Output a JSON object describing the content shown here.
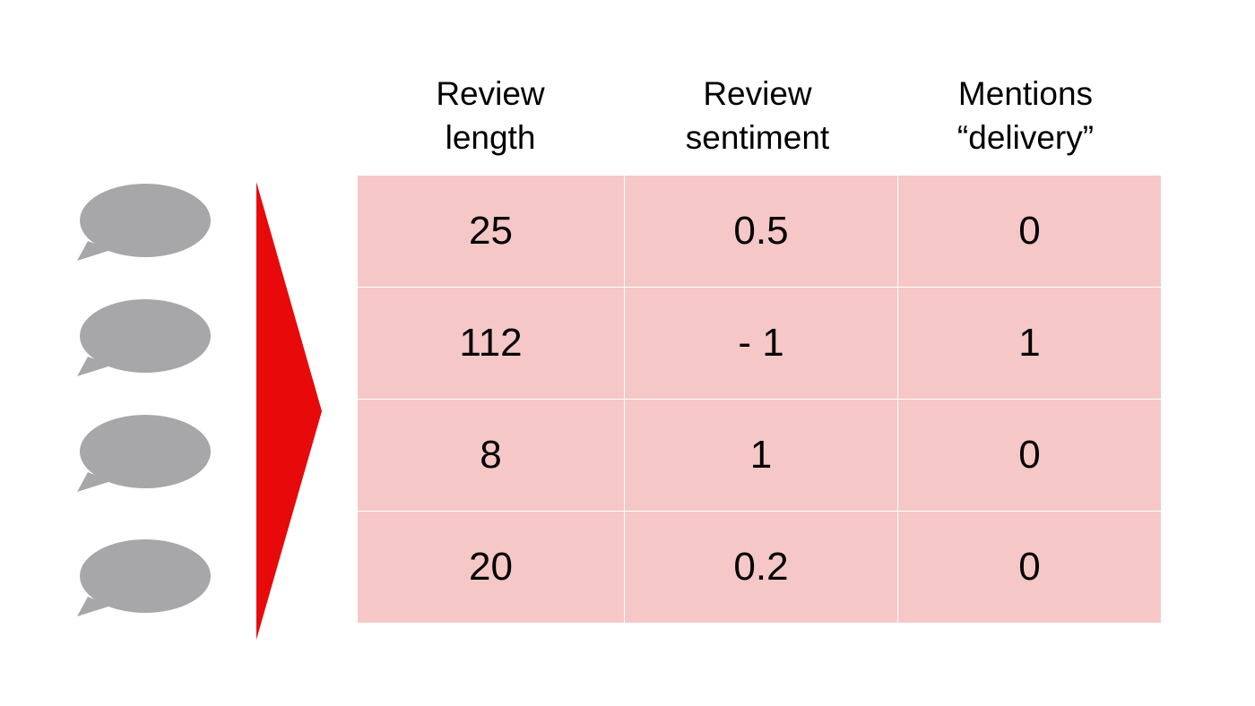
{
  "headers": [
    {
      "line1": "Review",
      "line2": "length"
    },
    {
      "line1": "Review",
      "line2": "sentiment"
    },
    {
      "line1": "Mentions",
      "line2": "“delivery”"
    }
  ],
  "rows": [
    [
      "25",
      "0.5",
      "0"
    ],
    [
      "112",
      "- 1",
      "1"
    ],
    [
      "8",
      "1",
      "0"
    ],
    [
      "20",
      "0.2",
      "0"
    ]
  ],
  "colors": {
    "bubble": "#a7a7a9",
    "arrow": "#e8090a",
    "cell_fill": "#f6c7c7"
  },
  "icons": {
    "review": "speech-bubble-icon",
    "transform": "triangle-arrow-icon"
  }
}
